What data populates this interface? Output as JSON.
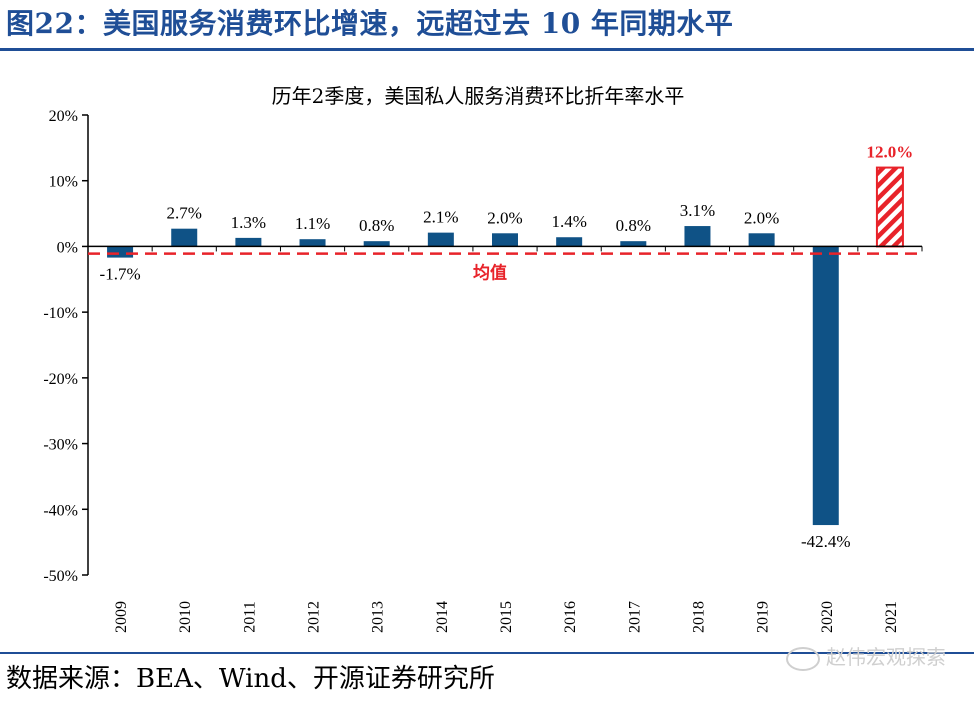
{
  "figure_title": "图22：美国服务消费环比增速，远超过去 10 年同期水平",
  "source_text": "数据来源：BEA、Wind、开源证券研究所",
  "watermark_text": "赵伟宏观探索",
  "colors": {
    "title": "#1f4e96",
    "bar": "#0f5286",
    "highlight": "#e8232a"
  },
  "chart_data": {
    "type": "bar",
    "title": "历年2季度，美国私人服务消费环比折年率水平",
    "categories": [
      "2009",
      "2010",
      "2011",
      "2012",
      "2013",
      "2014",
      "2015",
      "2016",
      "2017",
      "2018",
      "2019",
      "2020",
      "2021"
    ],
    "values": [
      -1.7,
      2.7,
      1.3,
      1.1,
      0.8,
      2.1,
      2.0,
      1.4,
      0.8,
      3.1,
      2.0,
      -42.4,
      12.0
    ],
    "data_labels": [
      "-1.7%",
      "2.7%",
      "1.3%",
      "1.1%",
      "0.8%",
      "2.1%",
      "2.0%",
      "1.4%",
      "0.8%",
      "3.1%",
      "2.0%",
      "-42.4%",
      "12.0%"
    ],
    "highlight_category": "2021",
    "ylim": [
      -50,
      20
    ],
    "yticks": [
      20,
      10,
      0,
      -10,
      -20,
      -30,
      -40,
      -50
    ],
    "ytick_labels": [
      "20%",
      "10%",
      "0%",
      "-10%",
      "-20%",
      "-30%",
      "-40%",
      "-50%"
    ],
    "average_line": {
      "label": "均值",
      "value": -1.1
    },
    "xlabel": "",
    "ylabel": "",
    "grid": false,
    "legend": "none"
  }
}
